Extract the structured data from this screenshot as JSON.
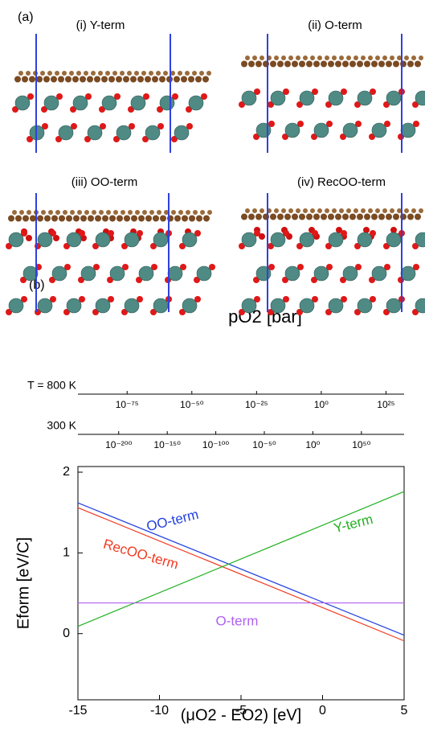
{
  "panel_a": {
    "label": "(a)",
    "structures": [
      {
        "label": "(i) Y-term"
      },
      {
        "label": "(ii) O-term"
      },
      {
        "label": "(iii) OO-term"
      },
      {
        "label": "(iv) RecOO-term"
      }
    ]
  },
  "panel_b": {
    "label": "(b)",
    "pressure_axis": {
      "title": "pO2 [bar]",
      "log": true,
      "rows": [
        {
          "label": "T = 800 K",
          "xlim": [
            1e-94,
            1e+32
          ],
          "ticks": [
            {
              "value": 1e-75,
              "label": "10⁻⁷⁵"
            },
            {
              "value": 1e-50,
              "label": "10⁻⁵⁰"
            },
            {
              "value": 1e-25,
              "label": "10⁻²⁵"
            },
            {
              "value": 1,
              "label": "10⁰"
            },
            {
              "value": 1e+25,
              "label": "10²⁵"
            }
          ]
        },
        {
          "label": "300 K",
          "xlim": [
            1e-242,
            1e+94
          ],
          "ticks": [
            {
              "value": 1e-200,
              "label": "10⁻²⁰⁰"
            },
            {
              "value": 1e-150,
              "label": "10⁻¹⁵⁰"
            },
            {
              "value": 1e-100,
              "label": "10⁻¹⁰⁰"
            },
            {
              "value": 1e-50,
              "label": "10⁻⁵⁰"
            },
            {
              "value": 1,
              "label": "10⁰"
            },
            {
              "value": 1e+50,
              "label": "10⁵⁰"
            }
          ]
        }
      ]
    }
  },
  "chart_data": {
    "type": "line",
    "x_label": "(μO2 - EO2)  [eV]",
    "y_label": "Eform [eV/C]",
    "x": [
      -15,
      5
    ],
    "xlim": [
      -15,
      5
    ],
    "ylim": [
      -0.82,
      2.07
    ],
    "xticks": [
      -15,
      -10,
      -5,
      0,
      5
    ],
    "yticks": [
      0,
      1,
      2
    ],
    "series": [
      {
        "name": "OO-term",
        "color": "#2040e0",
        "values": [
          1.62,
          -0.02
        ]
      },
      {
        "name": "RecOO-term",
        "color": "#f03a20",
        "values": [
          1.56,
          -0.09
        ]
      },
      {
        "name": "Y-term",
        "color": "#20b020",
        "values": [
          0.09,
          1.76
        ]
      },
      {
        "name": "O-term",
        "color": "#b060f0",
        "values": [
          0.38,
          0.38
        ]
      }
    ]
  }
}
